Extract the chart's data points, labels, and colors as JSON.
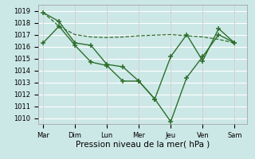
{
  "background_color": "#cce8e6",
  "grid_color": "#ffffff",
  "line_color": "#2d6e2d",
  "xlabel": "Pression niveau de la mer( hPa )",
  "day_labels": [
    "Mar",
    "Dim",
    "Lun",
    "Mer",
    "Jeu",
    "Ven",
    "Sam"
  ],
  "day_positions": [
    0,
    1,
    2,
    3,
    4,
    5,
    6
  ],
  "ylim": [
    1009.5,
    1019.5
  ],
  "yticks": [
    1010,
    1011,
    1012,
    1013,
    1014,
    1015,
    1016,
    1017,
    1018,
    1019
  ],
  "series1_x": [
    0.0,
    0.5,
    1.0,
    1.5,
    2.0,
    2.5,
    3.0,
    3.5,
    4.0,
    4.5,
    5.0,
    5.5,
    6.0
  ],
  "series1_y": [
    1018.85,
    1017.7,
    1017.0,
    1016.8,
    1016.75,
    1016.8,
    1016.9,
    1016.95,
    1017.0,
    1016.9,
    1016.8,
    1016.6,
    1016.3
  ],
  "series2_x": [
    0.0,
    0.5,
    1.0,
    1.5,
    2.0,
    2.5,
    3.0,
    3.5,
    4.0,
    4.5,
    5.0,
    5.5,
    6.0
  ],
  "series2_y": [
    1018.85,
    1018.1,
    1016.3,
    1016.1,
    1014.5,
    1014.3,
    1013.1,
    1011.6,
    1009.7,
    1013.4,
    1015.15,
    1017.0,
    1016.3
  ],
  "series3_x": [
    0.0,
    0.5,
    1.0,
    1.5,
    2.0,
    2.5,
    3.0,
    3.5,
    4.0,
    4.5,
    5.0,
    5.5,
    6.0
  ],
  "series3_y": [
    1016.3,
    1017.7,
    1016.1,
    1014.7,
    1014.4,
    1013.1,
    1013.1,
    1011.6,
    1015.15,
    1017.0,
    1014.8,
    1017.5,
    1016.3
  ],
  "figsize": [
    3.2,
    2.0
  ],
  "dpi": 100,
  "tick_fontsize": 6.0,
  "xlabel_fontsize": 7.5
}
